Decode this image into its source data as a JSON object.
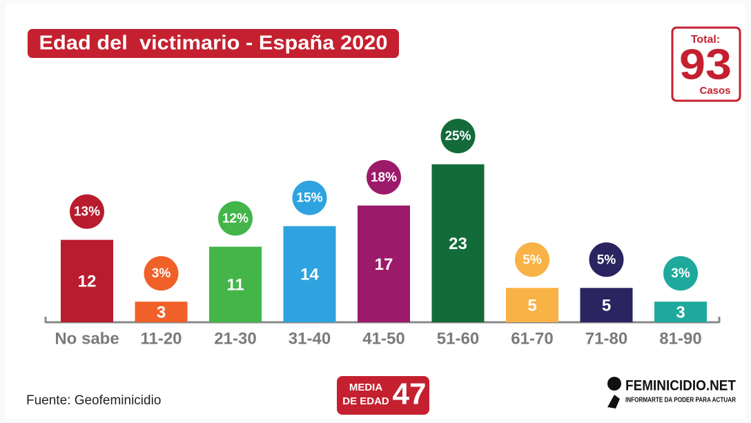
{
  "chart_data": {
    "type": "bar",
    "title": "Edad del  victimario - España 2020",
    "categories": [
      "No sabe",
      "11-20",
      "21-30",
      "31-40",
      "41-50",
      "51-60",
      "61-70",
      "71-80",
      "81-90"
    ],
    "values": [
      12,
      3,
      11,
      14,
      17,
      23,
      5,
      5,
      3
    ],
    "percent_labels": [
      "13%",
      "3%",
      "12%",
      "15%",
      "18%",
      "25%",
      "5%",
      "5%",
      "3%"
    ],
    "colors": [
      "#b81c2e",
      "#f0612a",
      "#43b549",
      "#2ea3df",
      "#9c1a6a",
      "#136b3a",
      "#f8b245",
      "#2a2460",
      "#1fa99d"
    ],
    "total": {
      "label": "Total:",
      "value": 93,
      "unit": "Casos"
    },
    "mean": {
      "label_line1": "MEDIA",
      "label_line2": "DE EDAD",
      "value": 47
    },
    "source": "Fuente: Geofeminicidio",
    "logo": {
      "name": "FEMINICIDIO.NET",
      "tagline": "INFORMARTE DA PODER PARA ACTUAR"
    }
  }
}
